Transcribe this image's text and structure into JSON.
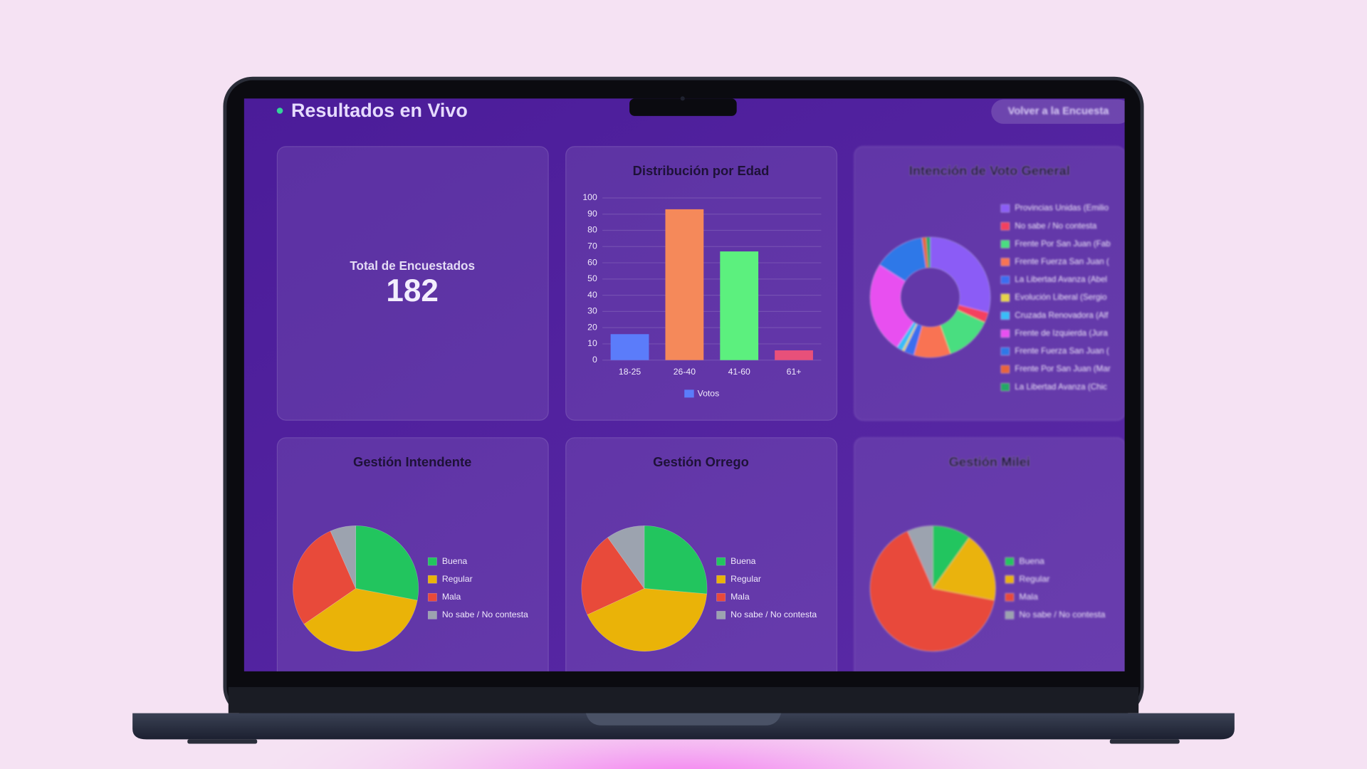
{
  "header": {
    "title": "Resultados en Vivo",
    "button": "Volver a la Encuesta"
  },
  "kpi": {
    "label": "Total de Encuestados",
    "value": 182
  },
  "chart_data": [
    {
      "type": "bar",
      "title": "Distribución por Edad",
      "categories": [
        "18-25",
        "26-40",
        "41-60",
        "61+"
      ],
      "series": [
        {
          "name": "Votos",
          "color": "#5b7cfa",
          "values": [
            16,
            93,
            67,
            6
          ]
        }
      ],
      "bar_colors": [
        "#5b7cfa",
        "#f5895a",
        "#5cf07e",
        "#e8507a"
      ],
      "ylim": [
        0,
        100
      ],
      "yticks": [
        0,
        10,
        20,
        30,
        40,
        50,
        60,
        70,
        80,
        90,
        100
      ],
      "grid": true
    },
    {
      "type": "doughnut",
      "title": "Intención de Voto General",
      "labels": [
        "Provincias Unidas (Emilio",
        "No sabe / No contesta",
        "Frente Por San Juan (Fab",
        "Frente Fuerza San Juan (",
        "La Libertad Avanza (Abel",
        "Evolución Liberal (Sergio",
        "Cruzada Renovadora (Alf",
        "Frente de Izquierda (Jura",
        "Frente Fuerza San Juan (",
        "Frente Por San Juan (Mar",
        "La Libertad Avanza (Chic"
      ],
      "values": [
        53,
        5,
        23,
        18,
        5,
        1,
        3,
        45,
        25,
        2,
        2
      ],
      "colors": [
        "#8b5cf6",
        "#f43f5e",
        "#4ade80",
        "#f97352",
        "#3b6ef0",
        "#e6d34a",
        "#38bdf8",
        "#e84ff0",
        "#2f78e8",
        "#e8643a",
        "#22a866"
      ],
      "legend": "right"
    },
    {
      "type": "pie",
      "title": "Gestión Intendente",
      "labels": [
        "Buena",
        "Regular",
        "Mala",
        "No sabe / No contesta"
      ],
      "values": [
        51,
        68,
        51,
        12
      ],
      "colors": [
        "#22c55e",
        "#eab308",
        "#e84a3a",
        "#9ca3af"
      ],
      "legend": "right"
    },
    {
      "type": "pie",
      "title": "Gestión Orrego",
      "labels": [
        "Buena",
        "Regular",
        "Mala",
        "No sabe / No contesta"
      ],
      "values": [
        48,
        76,
        40,
        18
      ],
      "colors": [
        "#22c55e",
        "#eab308",
        "#e84a3a",
        "#9ca3af"
      ],
      "legend": "right"
    },
    {
      "type": "pie",
      "title": "Gestión Milei",
      "labels": [
        "Buena",
        "Regular",
        "Mala",
        "No sabe / No contesta"
      ],
      "values": [
        18,
        33,
        119,
        12
      ],
      "colors": [
        "#22c55e",
        "#eab308",
        "#e84a3a",
        "#9ca3af"
      ],
      "legend": "right"
    }
  ]
}
